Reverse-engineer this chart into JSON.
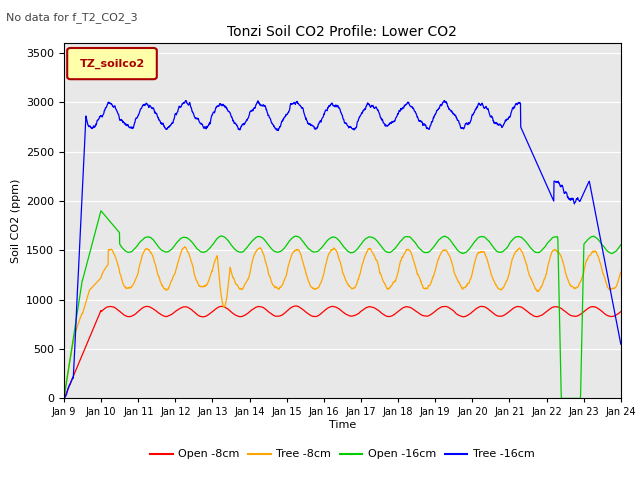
{
  "title": "Tonzi Soil CO2 Profile: Lower CO2",
  "top_left_text": "No data for f_T2_CO2_3",
  "legend_label_text": "TZ_soilco2",
  "xlabel": "Time",
  "ylabel": "Soil CO2 (ppm)",
  "ylim": [
    0,
    3600
  ],
  "yticks": [
    0,
    500,
    1000,
    1500,
    2000,
    2500,
    3000,
    3500
  ],
  "plot_bg_color": "#e8e8e8",
  "legend_entries": [
    "Open -8cm",
    "Tree -8cm",
    "Open -16cm",
    "Tree -16cm"
  ],
  "legend_colors": [
    "#ff0000",
    "#ffa500",
    "#00cc00",
    "#0000ff"
  ],
  "line_colors": {
    "open_8cm": "#ff0000",
    "tree_8cm": "#ffa500",
    "open_16cm": "#00cc00",
    "tree_16cm": "#0000ff"
  },
  "x_tick_labels": [
    "Jan 9",
    "Jan 10",
    "Jan 11",
    "Jan 12",
    "Jan 13",
    "Jan 14",
    "Jan 15",
    "Jan 16",
    "Jan 17",
    "Jan 18",
    "Jan 19",
    "Jan 20",
    "Jan 21",
    "Jan 22",
    "Jan 23",
    "Jan 24"
  ],
  "n_points": 2160
}
